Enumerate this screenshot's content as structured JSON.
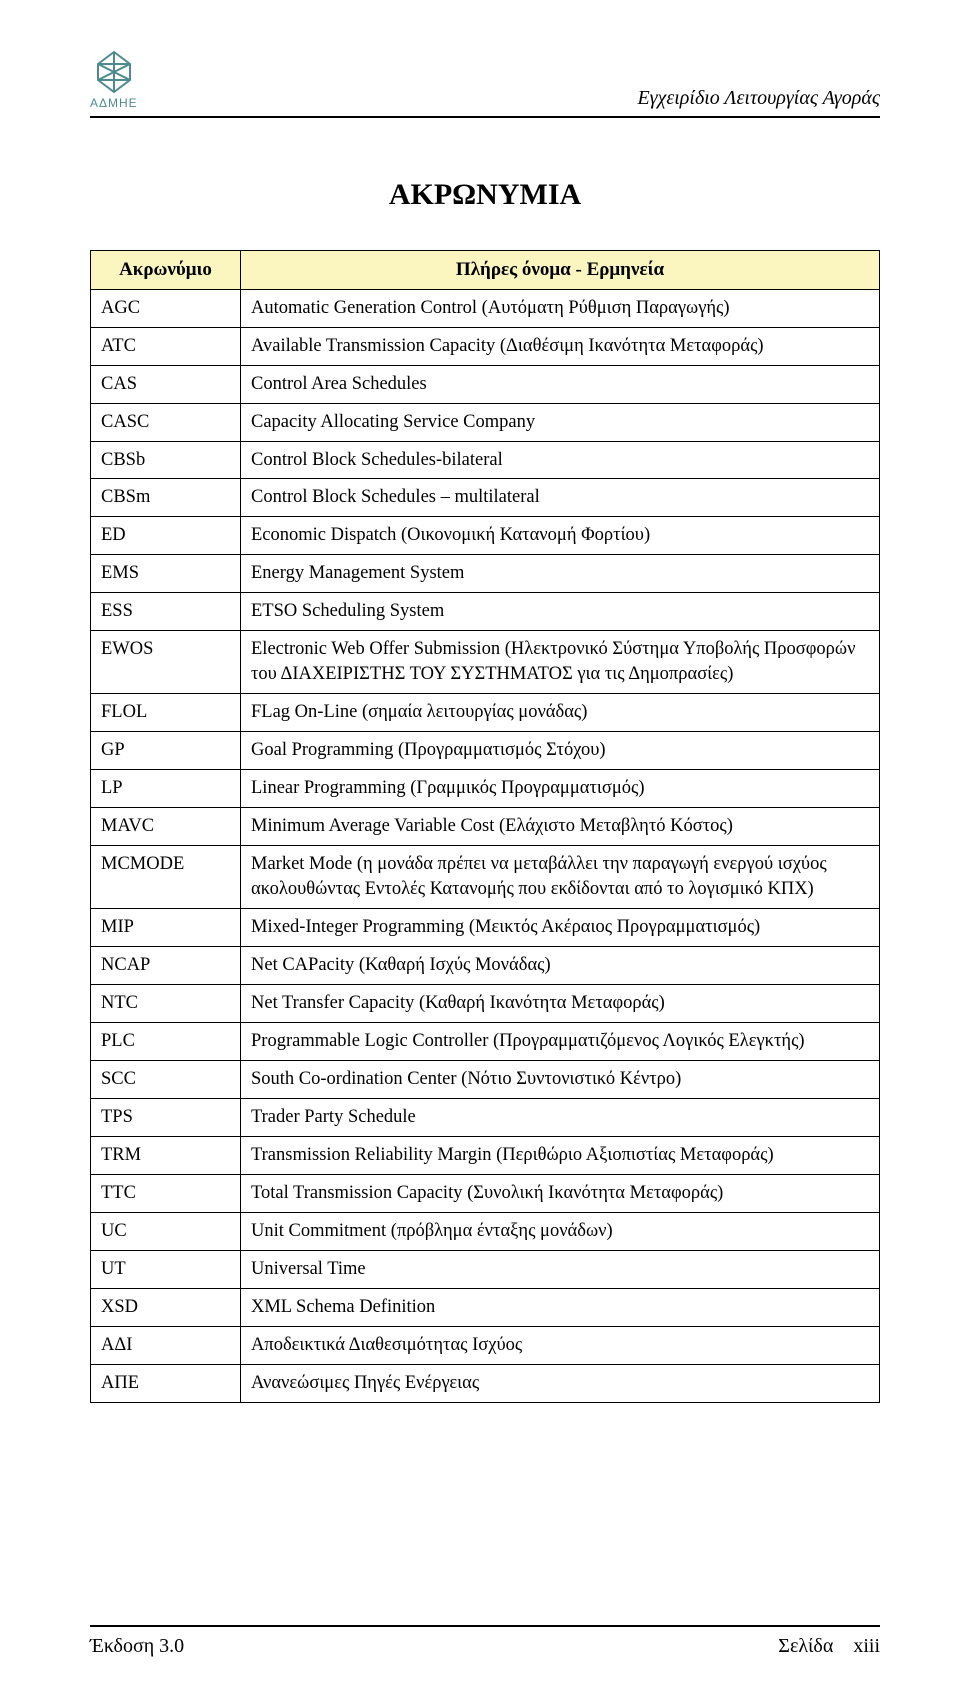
{
  "header": {
    "logo_caption": "ΑΔΜΗΕ",
    "doc_title": "Εγχειρίδιο Λειτουργίας Αγοράς"
  },
  "main_title": "ΑΚΡΩΝΥΜΙΑ",
  "table": {
    "header_acronym": "Ακρωνύμιο",
    "header_fullname": "Πλήρες όνομα - Ερμηνεία",
    "header_bg": "#fbf6c0",
    "rows": [
      {
        "a": "AGC",
        "d": "Automatic Generation Control (Αυτόματη Ρύθμιση Παραγωγής)"
      },
      {
        "a": "ATC",
        "d": "Available Transmission Capacity (Διαθέσιμη Ικανότητα Μεταφοράς)"
      },
      {
        "a": "CAS",
        "d": "Control Area Schedules"
      },
      {
        "a": "CASC",
        "d": "Capacity Allocating Service Company"
      },
      {
        "a": "CBSb",
        "d": "Control Block Schedules-bilateral"
      },
      {
        "a": "CBSm",
        "d": "Control Block Schedules – multilateral"
      },
      {
        "a": "ED",
        "d": "Economic Dispatch (Οικονομική Κατανομή Φορτίου)"
      },
      {
        "a": "EMS",
        "d": "Energy Management System"
      },
      {
        "a": "ESS",
        "d": "ETSO Scheduling System"
      },
      {
        "a": "EWOS",
        "d": "Electronic Web Offer Submission (Ηλεκτρονικό Σύστημα Υποβολής Προσφορών του ΔΙΑΧΕΙΡΙΣΤΗΣ ΤΟΥ ΣΥΣΤΗΜΑΤΟΣ για τις Δημοπρασίες)"
      },
      {
        "a": "FLOL",
        "d": "FLag On-Line (σημαία λειτουργίας μονάδας)"
      },
      {
        "a": "GP",
        "d": "Goal Programming (Προγραμματισμός Στόχου)"
      },
      {
        "a": "LP",
        "d": "Linear Programming (Γραμμικός Προγραμματισμός)"
      },
      {
        "a": "MAVC",
        "d": "Minimum Average Variable Cost (Ελάχιστο Μεταβλητό Κόστος)"
      },
      {
        "a": "MCMODE",
        "d": "Market Mode (η μονάδα πρέπει να μεταβάλλει την παραγωγή ενεργού ισχύος ακολουθώντας Εντολές Κατανομής που εκδίδονται από το λογισμικό ΚΠΧ)"
      },
      {
        "a": "MIP",
        "d": "Mixed-Integer Programming (Μεικτός Ακέραιος Προγραμματισμός)"
      },
      {
        "a": "NCAP",
        "d": "Net CAPacity (Καθαρή Ισχύς Μονάδας)"
      },
      {
        "a": "NTC",
        "d": "Net Transfer Capacity (Καθαρή Ικανότητα Μεταφοράς)"
      },
      {
        "a": "PLC",
        "d": "Programmable Logic Controller (Προγραμματιζόμενος Λογικός Ελεγκτής)"
      },
      {
        "a": "SCC",
        "d": "South Co-ordination Center (Νότιο Συντονιστικό Κέντρο)"
      },
      {
        "a": "TPS",
        "d": "Trader Party Schedule"
      },
      {
        "a": "TRM",
        "d": "Transmission Reliability Margin (Περιθώριο Αξιοπιστίας Μεταφοράς)"
      },
      {
        "a": "TTC",
        "d": "Total Transmission Capacity (Συνολική Ικανότητα Μεταφοράς)"
      },
      {
        "a": "UC",
        "d": "Unit Commitment (πρόβλημα ένταξης μονάδων)"
      },
      {
        "a": "UT",
        "d": "Universal Time"
      },
      {
        "a": "XSD",
        "d": "XML Schema Definition"
      },
      {
        "a": "ΑΔΙ",
        "d": "Αποδεικτικά Διαθεσιμότητας Ισχύος"
      },
      {
        "a": "ΑΠΕ",
        "d": "Ανανεώσιμες Πηγές Ενέργειας"
      }
    ]
  },
  "footer": {
    "left": "Έκδοση 3.0",
    "right_label": "Σελίδα",
    "right_num": "xiii"
  },
  "colors": {
    "logo": "#4e8b8f",
    "text": "#000000",
    "background": "#ffffff"
  }
}
